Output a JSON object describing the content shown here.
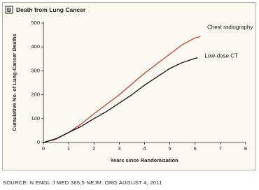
{
  "chart_data": {
    "type": "line",
    "panel_label": "B",
    "title": "Death from Lung Cancer",
    "x_label": "Years since Randomization",
    "y_label": "Cumulative No. of Lung-Cancer Deaths",
    "source": "SOURCE: N ENGL J MED 365;5 NEJM..ORG AUGUST 4, 2011",
    "xlim": [
      0,
      8
    ],
    "xticks": [
      0,
      1,
      2,
      3,
      4,
      5,
      6,
      7,
      8
    ],
    "ylim": [
      0,
      500
    ],
    "yticks": [
      0,
      100,
      200,
      300,
      400,
      500
    ],
    "series": [
      {
        "name": "Chest radiography",
        "color": "#c8412e",
        "x": [
          0,
          0.5,
          1,
          1.5,
          2,
          2.5,
          3,
          3.5,
          4,
          4.5,
          5,
          5.5,
          6,
          6.2
        ],
        "values": [
          0,
          14,
          42,
          78,
          120,
          160,
          200,
          245,
          290,
          330,
          370,
          410,
          438,
          443
        ]
      },
      {
        "name": "Low-dose CT",
        "color": "#111111",
        "x": [
          0,
          0.5,
          1,
          1.5,
          2,
          2.5,
          3,
          3.5,
          4,
          4.5,
          5,
          5.5,
          6,
          6.1
        ],
        "values": [
          0,
          16,
          42,
          68,
          100,
          130,
          165,
          200,
          240,
          275,
          310,
          335,
          352,
          355
        ]
      }
    ]
  }
}
